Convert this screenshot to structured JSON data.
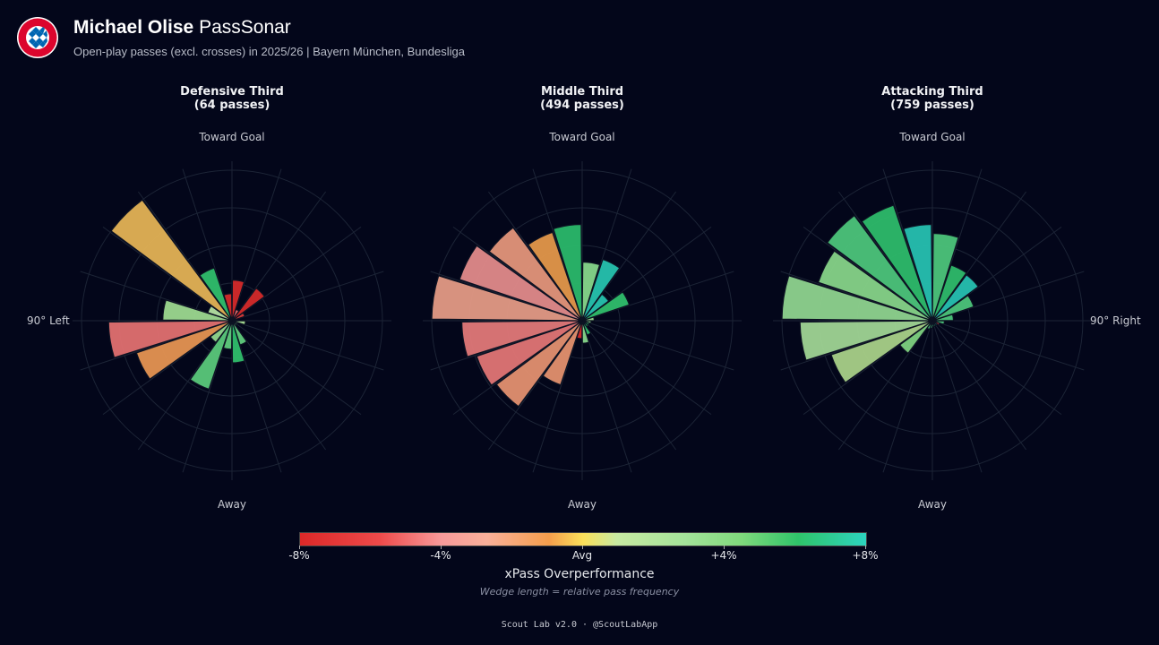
{
  "header": {
    "name": "Michael Olise",
    "title_suffix": "PassSonar",
    "subtitle": "Open-play passes (excl. crosses) in 2025/26 | Bayern München, Bundesliga",
    "logo_text": "FC BAYERN MÜNCHEN"
  },
  "chart_data": [
    {
      "type": "polar-bar",
      "title": "Defensive Third",
      "passes_label": "(64 passes)",
      "sectors": 20,
      "direction_labels": {
        "top": "Toward Goal",
        "bottom": "Away",
        "left": "90° Left",
        "right": "90° Right"
      },
      "relative_frequency": [
        0.27,
        0.08,
        0.27,
        0.09,
        0.03,
        0.09,
        0.04,
        0.04,
        0.17,
        0.28,
        0.19,
        0.48,
        0.18,
        0.67,
        0.82,
        0.46,
        0.17,
        1.0,
        0.37,
        0.18
      ],
      "colors": [
        "#d42a2a",
        "#e56a6a",
        "#d42a2a",
        "#d63a3a",
        "#e07070",
        "#a8dc94",
        "#86d688",
        "#6fd080",
        "#5fcb7c",
        "#2fbe6c",
        "#5fcb7c",
        "#5ac87a",
        "#90d68c",
        "#e59352",
        "#e07070",
        "#9cd88f",
        "#b4e0a2",
        "#e3b255",
        "#2fbe6c",
        "#d42a2a"
      ]
    },
    {
      "type": "polar-bar",
      "title": "Middle Third",
      "passes_label": "(494 passes)",
      "sectors": 20,
      "direction_labels": {
        "top": "Toward Goal",
        "bottom": "Away",
        "left": "90° Left",
        "right": "90° Right"
      },
      "relative_frequency": [
        0.39,
        0.43,
        0.22,
        0.33,
        0.08,
        0.06,
        0.05,
        0.05,
        0.1,
        0.15,
        0.12,
        0.45,
        0.71,
        0.74,
        0.8,
        1.0,
        0.86,
        0.77,
        0.62,
        0.64
      ],
      "colors": [
        "#86d68a",
        "#26c2ae",
        "#26c2ae",
        "#2fbe6c",
        "#9cd88f",
        "#86d688",
        "#2fbe6c",
        "#2fbe6c",
        "#2fbe6c",
        "#86d68a",
        "#d42a2a",
        "#e3906e",
        "#e39070",
        "#e07575",
        "#e07878",
        "#e39a85",
        "#e08a8a",
        "#e3957a",
        "#e3974a",
        "#2ab86a"
      ]
    },
    {
      "type": "polar-bar",
      "title": "Attacking Third",
      "passes_label": "(759 passes)",
      "sectors": 20,
      "direction_labels": {
        "top": "Toward Goal",
        "bottom": "Away",
        "left": "90° Left",
        "right": "90° Right"
      },
      "relative_frequency": [
        0.58,
        0.39,
        0.38,
        0.29,
        0.14,
        0.08,
        0.05,
        0.04,
        0.04,
        0.04,
        0.05,
        0.06,
        0.27,
        0.71,
        0.88,
        1.0,
        0.8,
        0.87,
        0.81,
        0.64
      ],
      "colors": [
        "#4cc47a",
        "#2ebb6a",
        "#26c0b0",
        "#4cc47a",
        "#4cc47a",
        "#4cc47a",
        "#e04040",
        "#26c0b0",
        "#2ebb6a",
        "#2ebb6a",
        "#4cc47a",
        "#4cc47a",
        "#7dd080",
        "#a8d088",
        "#9fd494",
        "#8ed38e",
        "#86d388",
        "#4cc47a",
        "#2dbb6a",
        "#26c0b0"
      ]
    }
  ],
  "colorbar": {
    "ticks": [
      "-8%",
      "-4%",
      "Avg",
      "+4%",
      "+8%"
    ],
    "label": "xPass Overperformance",
    "note": "Wedge length = relative pass frequency"
  },
  "footer": "Scout Lab v2.0 · @ScoutLabApp"
}
